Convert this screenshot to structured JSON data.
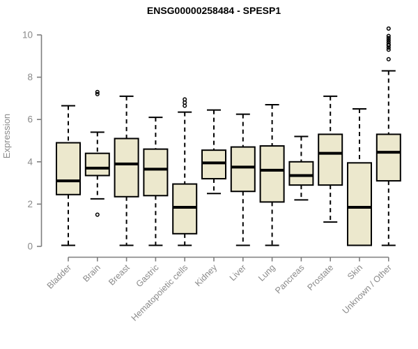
{
  "chart_data": {
    "type": "boxplot",
    "title": "ENSG00000258484 - SPESP1",
    "ylabel": "Expression",
    "xlabel": "",
    "ylim": [
      0,
      10.4
    ],
    "yticks": [
      0,
      2,
      4,
      6,
      8,
      10
    ],
    "grid": false,
    "legend_position": "none",
    "colors": {
      "box_fill": "#ece8cd",
      "box_stroke": "#000000",
      "median": "#000000",
      "whisker": "#000000",
      "axis": "#7e7e7e",
      "tick_label": "#8a8a8a",
      "title": "#000000",
      "background": "#ffffff"
    },
    "categories": [
      "Bladder",
      "Brain",
      "Breast",
      "Gastric",
      "Hematopoietic cells",
      "Kidney",
      "Liver",
      "Lung",
      "Pancreas",
      "Prostate",
      "Skin",
      "Unknown / Other"
    ],
    "series": [
      {
        "category": "Bladder",
        "whisker_low": 0.05,
        "q1": 2.45,
        "median": 3.1,
        "q3": 4.9,
        "whisker_high": 6.65,
        "outliers": []
      },
      {
        "category": "Brain",
        "whisker_low": 2.25,
        "q1": 3.35,
        "median": 3.7,
        "q3": 4.4,
        "whisker_high": 5.4,
        "outliers": [
          1.5,
          7.2,
          7.3
        ]
      },
      {
        "category": "Breast",
        "whisker_low": 0.05,
        "q1": 2.35,
        "median": 3.9,
        "q3": 5.1,
        "whisker_high": 7.1,
        "outliers": []
      },
      {
        "category": "Gastric",
        "whisker_low": 0.05,
        "q1": 2.4,
        "median": 3.65,
        "q3": 4.6,
        "whisker_high": 6.1,
        "outliers": []
      },
      {
        "category": "Hematopoietic cells",
        "whisker_low": 0.05,
        "q1": 0.6,
        "median": 1.85,
        "q3": 2.95,
        "whisker_high": 6.35,
        "outliers": [
          6.65,
          6.8,
          6.95
        ]
      },
      {
        "category": "Kidney",
        "whisker_low": 2.5,
        "q1": 3.2,
        "median": 3.95,
        "q3": 4.55,
        "whisker_high": 6.45,
        "outliers": []
      },
      {
        "category": "Liver",
        "whisker_low": 0.05,
        "q1": 2.6,
        "median": 3.75,
        "q3": 4.7,
        "whisker_high": 6.25,
        "outliers": []
      },
      {
        "category": "Lung",
        "whisker_low": 0.05,
        "q1": 2.1,
        "median": 3.6,
        "q3": 4.75,
        "whisker_high": 6.7,
        "outliers": []
      },
      {
        "category": "Pancreas",
        "whisker_low": 2.2,
        "q1": 2.9,
        "median": 3.35,
        "q3": 4.0,
        "whisker_high": 5.2,
        "outliers": []
      },
      {
        "category": "Prostate",
        "whisker_low": 1.15,
        "q1": 2.9,
        "median": 4.4,
        "q3": 5.3,
        "whisker_high": 7.1,
        "outliers": []
      },
      {
        "category": "Skin",
        "whisker_low": 0.05,
        "q1": 0.05,
        "median": 1.85,
        "q3": 3.95,
        "whisker_high": 6.5,
        "outliers": []
      },
      {
        "category": "Unknown / Other",
        "whisker_low": 0.05,
        "q1": 3.1,
        "median": 4.45,
        "q3": 5.3,
        "whisker_high": 8.3,
        "outliers": [
          8.85,
          9.3,
          9.4,
          9.5,
          9.55,
          9.65,
          9.75,
          9.85,
          9.95,
          10.3
        ]
      }
    ]
  }
}
